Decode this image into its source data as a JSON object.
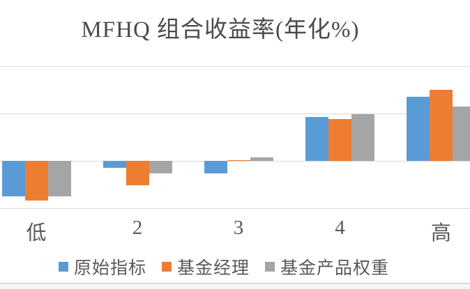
{
  "chart_data": {
    "type": "bar",
    "title": "MFHQ 组合收益率(年化%)",
    "categories": [
      "低",
      "2",
      "3",
      "4",
      "高"
    ],
    "series": [
      {
        "name": "原始指标",
        "color": "#5B9BD5",
        "values": [
          -0.75,
          -0.15,
          -0.26,
          0.92,
          1.36
        ]
      },
      {
        "name": "基金经理",
        "color": "#ED7D31",
        "values": [
          -0.84,
          -0.52,
          0.02,
          0.88,
          1.5
        ]
      },
      {
        "name": "基金产品权重",
        "color": "#A5A5A5",
        "values": [
          -0.75,
          -0.27,
          0.07,
          0.99,
          1.14
        ]
      }
    ],
    "xlabel": "",
    "ylabel": "",
    "ylim": [
      -1,
      2.2
    ],
    "gridline_values": [
      -1,
      0,
      1,
      2
    ],
    "axis_tick_labels_visible": false,
    "values_estimated_from_gridlines": true,
    "legend_position": "bottom",
    "gridline_color": "#d9d9d9",
    "text_color": "#595959"
  }
}
